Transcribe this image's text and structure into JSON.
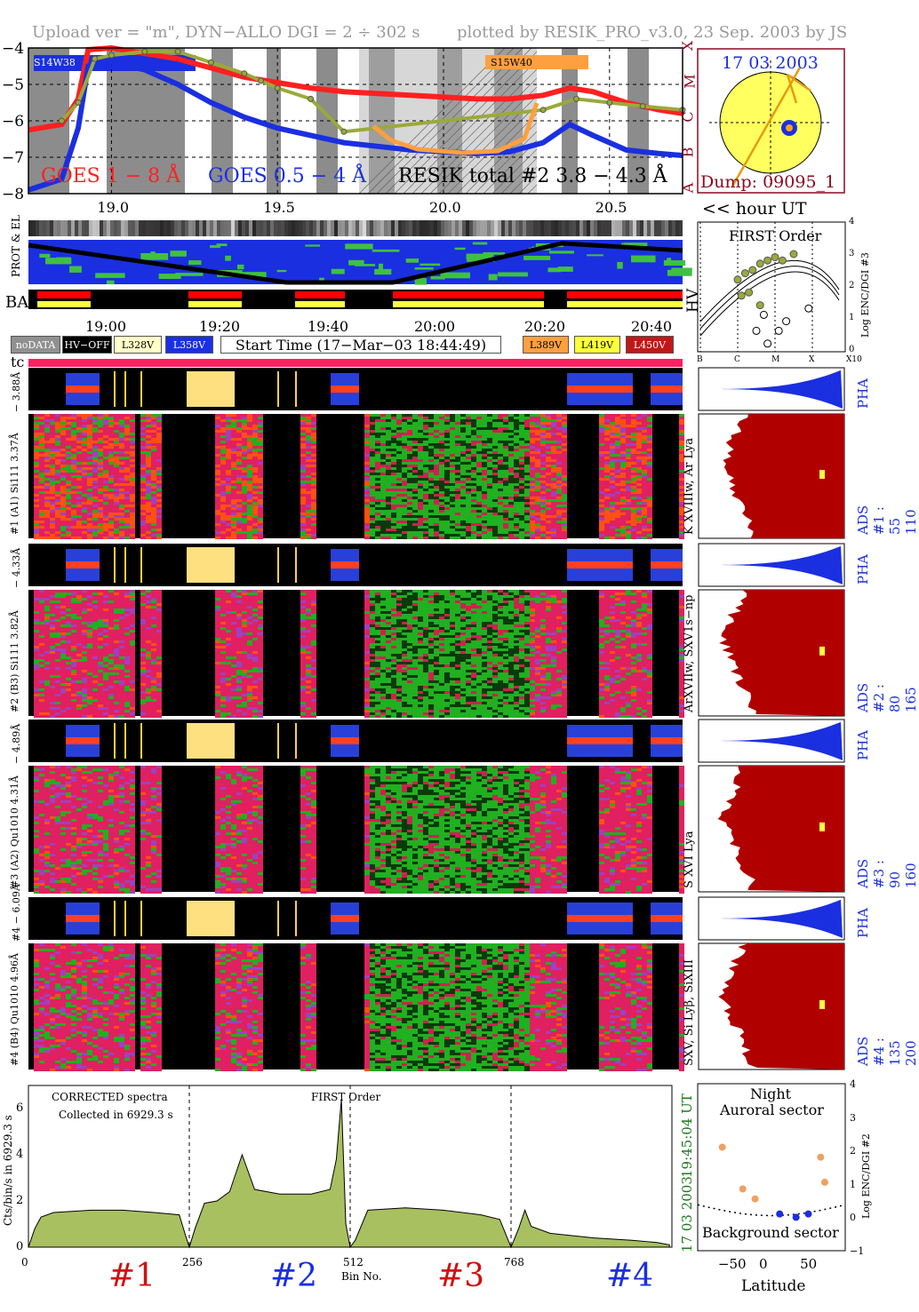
{
  "header": {
    "left": "Upload ver = \"m\", DYN−ALLO DGI =   2 ÷ 302 s",
    "right": "plotted by RESIK_PRO_v3.0, 23 Sep. 2003 by JS"
  },
  "goes_panel": {
    "y_ticks": [
      "−4",
      "−5",
      "−6",
      "−7",
      "−8"
    ],
    "class_letters": [
      "X",
      "M",
      "C",
      "B",
      "A"
    ],
    "legend_goes_long": "GOES 1 − 8 Å",
    "legend_goes_short": "GOES 0.5 − 4 Å",
    "legend_resik": "RESIK total #2  3.8 − 4.3 Å",
    "tag_left": "S14W38",
    "tag_right": "S15W40",
    "colors": {
      "goes_long": "#ff2020",
      "goes_short": "#1a2fe0",
      "resik": "#9aaa3a",
      "night": "#8c8c8c",
      "tag_right": "#ffa040"
    }
  },
  "sun_panel": {
    "date": "17 03 2003",
    "dump": "Dump: 09095_1"
  },
  "hour_axis": {
    "ticks": [
      "19.0",
      "19.5",
      "20.0",
      "20.5"
    ],
    "unit_label": "<< hour UT"
  },
  "strip_labels": {
    "prot_el": "PROT & EL",
    "ba": "BA",
    "hv": "HV"
  },
  "first_order_panel": {
    "title": "FIRST Order",
    "ylabel": "Log ENC/DGI #3",
    "y_ticks": [
      "4",
      "3",
      "2",
      "1",
      "0"
    ],
    "x_ticks": [
      "B",
      "C",
      "M",
      "X",
      "X10"
    ]
  },
  "time_axis": {
    "ticks": [
      "19:00",
      "19:20",
      "19:40",
      "20:00",
      "20:20",
      "20:40"
    ]
  },
  "legend": {
    "nodata": "noDATA",
    "hvoff": "HV−OFF",
    "l328": "L328V",
    "l358": "L358V",
    "start": "Start Time (17−Mar−03 18:44:49)",
    "l389": "L389V",
    "l419": "L419V",
    "l450": "L450V"
  },
  "tc_label": "tc",
  "detectors": [
    {
      "pha_label": "#4 − 6.09Å",
      "ads_label": "#4 (B4) Qu1010 4.96Å",
      "line_id": "SXV, Si Lyβ, SiXIII",
      "ads_right": "ADS #4 :  135 200"
    },
    {
      "pha_label": "− 4.89Å",
      "ads_label": "#3 (A2) Qu1010 4.31Å",
      "line_id": "S XVI Lya",
      "ads_right": "ADS #3 :  90 160"
    },
    {
      "pha_label": "− 4.33Å",
      "ads_label": "#2 (B3) Si111 3.82Å",
      "line_id": "ArXVIIw, SXV1s−np",
      "ads_right": "ADS #2 :  80 165"
    },
    {
      "pha_label": "− 3.88Å",
      "ads_label": "#1 (A1) Si111 3.37Å",
      "line_id": "K XVIIIw, Ar Lya",
      "ads_right": "ADS #1 :  55 110"
    }
  ],
  "pha_word": "PHA",
  "spectrum_panel": {
    "title1": "CORRECTED spectra",
    "title2": "Collected in  6929.3 s",
    "first_order": "FIRST Order",
    "ylabel": "Cts/bin/s in  6929.3 s",
    "y_ticks": [
      "0",
      "2",
      "4",
      "6"
    ],
    "x_ticks": [
      "0",
      "256",
      "512",
      "768"
    ],
    "xlabel": "Bin No.",
    "right_time": "19:45:04 UT",
    "right_date": "17 03 2003",
    "detector_tags": [
      "#1",
      "#2",
      "#3",
      "#4"
    ],
    "tag_colors": [
      "#d01010",
      "#1a2fe0",
      "#d01010",
      "#1a2fe0"
    ]
  },
  "aurora_panel": {
    "night": "Night",
    "auroral": "Auroral sector",
    "background": "Background sector",
    "ylabel": "Log ENC/DGI #2",
    "y_ticks": [
      "4",
      "3",
      "2",
      "1",
      "0",
      "−1"
    ],
    "x_ticks": [
      "−50",
      "0",
      "50"
    ],
    "xlabel": "Latitude"
  },
  "chart_data": [
    {
      "type": "line",
      "title": "",
      "xlabel": "",
      "ylabel": "",
      "xlim": [
        18.75,
        20.72
      ],
      "ylim": [
        -8,
        -4
      ],
      "series": [
        {
          "name": "GOES 1 − 8 Å",
          "x": [
            18.75,
            18.85,
            18.9,
            18.93,
            19.0,
            19.1,
            19.2,
            19.3,
            19.4,
            19.5,
            19.6,
            19.7,
            19.8,
            19.9,
            20.0,
            20.1,
            20.2,
            20.3,
            20.38,
            20.45,
            20.55,
            20.65,
            20.72
          ],
          "y": [
            -6.25,
            -6.1,
            -5.4,
            -4.05,
            -4.0,
            -4.15,
            -4.3,
            -4.55,
            -4.8,
            -4.95,
            -5.1,
            -5.2,
            -5.25,
            -5.3,
            -5.35,
            -5.4,
            -5.4,
            -5.3,
            -5.1,
            -5.2,
            -5.5,
            -5.7,
            -5.8
          ]
        },
        {
          "name": "GOES 0.5 − 4 Å",
          "x": [
            18.75,
            18.85,
            18.9,
            18.93,
            19.0,
            19.1,
            19.2,
            19.3,
            19.4,
            19.5,
            19.6,
            19.7,
            19.8,
            19.9,
            20.0,
            20.1,
            20.2,
            20.3,
            20.38,
            20.45,
            20.55,
            20.65,
            20.72
          ],
          "y": [
            -7.9,
            -7.6,
            -6.2,
            -4.5,
            -4.4,
            -4.6,
            -5.0,
            -5.5,
            -5.9,
            -6.2,
            -6.4,
            -6.6,
            -6.7,
            -6.8,
            -6.85,
            -6.9,
            -6.85,
            -6.6,
            -6.1,
            -6.4,
            -6.8,
            -6.9,
            -6.95
          ]
        },
        {
          "name": "RESIK total #2  3.8 − 4.3 Å",
          "x": [
            18.85,
            18.9,
            18.95,
            19.0,
            19.1,
            19.2,
            19.3,
            19.4,
            19.45,
            19.5,
            19.6,
            19.7,
            20.3,
            20.4,
            20.5,
            20.6,
            20.72
          ],
          "y": [
            -6.0,
            -5.5,
            -4.3,
            -4.2,
            -4.1,
            -4.1,
            -4.4,
            -4.7,
            -4.9,
            -5.1,
            -5.4,
            -6.3,
            -5.7,
            -5.4,
            -5.5,
            -5.6,
            -5.7
          ]
        }
      ]
    },
    {
      "type": "area",
      "title": "CORRECTED spectra",
      "xlabel": "Bin No.",
      "ylabel": "Cts/bin/s in  6929.3 s",
      "xlim": [
        0,
        1024
      ],
      "ylim": [
        0,
        7
      ],
      "series": [
        {
          "name": "",
          "x": [
            0,
            10,
            20,
            40,
            100,
            150,
            200,
            240,
            250,
            256,
            265,
            280,
            300,
            320,
            340,
            360,
            400,
            450,
            480,
            490,
            498,
            505,
            512,
            520,
            540,
            600,
            660,
            720,
            750,
            768,
            780,
            790,
            800,
            830,
            900,
            960,
            1000,
            1020
          ],
          "y": [
            0.0,
            0.8,
            1.3,
            1.5,
            1.6,
            1.6,
            1.5,
            1.4,
            0.5,
            0.0,
            0.8,
            1.9,
            2.0,
            2.4,
            4.0,
            2.5,
            2.3,
            2.3,
            2.5,
            3.8,
            6.4,
            1.0,
            0.0,
            0.3,
            1.6,
            1.7,
            1.6,
            1.4,
            1.2,
            0.0,
            0.8,
            1.6,
            0.9,
            0.6,
            0.4,
            0.3,
            0.2,
            0.1
          ]
        }
      ]
    },
    {
      "type": "scatter",
      "title": "",
      "xlabel": "Latitude",
      "ylabel": "Log ENC/DGI #2",
      "xlim": [
        -90,
        90
      ],
      "ylim": [
        -1,
        4
      ],
      "series": [
        {
          "name": "",
          "x": [
            -60,
            60,
            65,
            -35,
            -20,
            10,
            30,
            45
          ],
          "y": [
            2.1,
            1.8,
            1.05,
            0.85,
            0.55,
            0.1,
            0.0,
            0.1
          ]
        }
      ]
    }
  ]
}
